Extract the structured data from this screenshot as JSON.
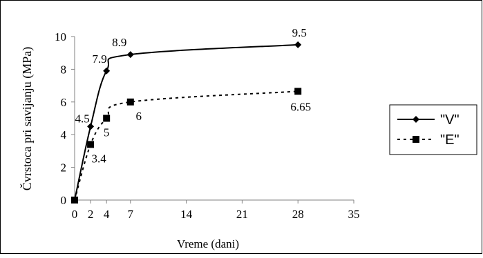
{
  "chart_data": {
    "type": "line",
    "title": "",
    "xlabel": "Vreme (dani)",
    "ylabel": "Čvrstoca pri savijanju (MPa)",
    "xlim": [
      0,
      35
    ],
    "ylim": [
      0,
      10
    ],
    "x_ticks": [
      0,
      2,
      4,
      7,
      14,
      21,
      28,
      35
    ],
    "y_ticks": [
      0,
      2,
      4,
      6,
      8,
      10
    ],
    "grid": false,
    "legend_position": "right",
    "series": [
      {
        "name": "\"V\"",
        "x": [
          0,
          2,
          4,
          7,
          28
        ],
        "values": [
          0,
          4.5,
          7.9,
          8.9,
          9.5
        ],
        "data_labels": [
          "",
          "4.5",
          "7.9",
          "8.9",
          "9.5"
        ],
        "line_style": "solid",
        "marker": "diamond",
        "color": "#000000"
      },
      {
        "name": "\"E\"",
        "x": [
          0,
          2,
          4,
          7,
          28
        ],
        "values": [
          0,
          3.4,
          5,
          6,
          6.65
        ],
        "data_labels": [
          "",
          "3.4",
          "5",
          "6",
          "6.65"
        ],
        "line_style": "dotted",
        "marker": "square",
        "color": "#000000"
      }
    ]
  }
}
